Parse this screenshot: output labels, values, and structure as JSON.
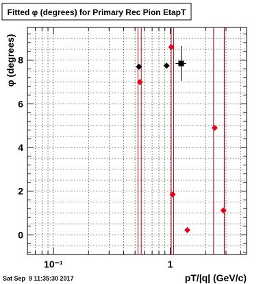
{
  "chart_data": {
    "type": "scatter",
    "title": "Fitted φ (degrees) for Primary Rec Pion EtapT",
    "xlabel": "pT/|q| (GeV/c)",
    "ylabel": "φ (degrees)",
    "xscale": "log",
    "xlim": [
      0.06,
      4.5
    ],
    "ylim": [
      -0.9,
      9.5
    ],
    "grid": true,
    "x_tick_labels": [
      {
        "value": 0.1,
        "label": "10⁻¹"
      },
      {
        "value": 1,
        "label": "1"
      }
    ],
    "y_ticks": [
      0,
      2,
      4,
      6,
      8
    ],
    "footer": "Sat Sep  9 11:35:30 2017",
    "colors": {
      "red": "#e8001c",
      "black": "#000000",
      "line": "#c0000f"
    },
    "vertical_lines": [
      0.53,
      0.565,
      1.02,
      1.07,
      2.35,
      2.9
    ],
    "series": [
      {
        "marker": "diamond",
        "color": "black",
        "points": [
          {
            "x": 0.54,
            "y": 7.7,
            "ex": 0.0,
            "ey": 0.0
          },
          {
            "x": 0.93,
            "y": 7.75,
            "ex": 0.0,
            "ey": 0.0
          }
        ]
      },
      {
        "marker": "square",
        "color": "black",
        "points": [
          {
            "x": 1.24,
            "y": 7.85,
            "ex": 0.13,
            "ey": 0.8
          }
        ]
      },
      {
        "marker": "diamond",
        "color": "red",
        "points": [
          {
            "x": 0.55,
            "y": 7.0
          },
          {
            "x": 1.02,
            "y": 8.6
          },
          {
            "x": 1.05,
            "y": 1.85
          },
          {
            "x": 1.4,
            "y": 0.22
          },
          {
            "x": 2.4,
            "y": 4.9
          },
          {
            "x": 2.85,
            "y": 1.12
          }
        ]
      }
    ]
  }
}
